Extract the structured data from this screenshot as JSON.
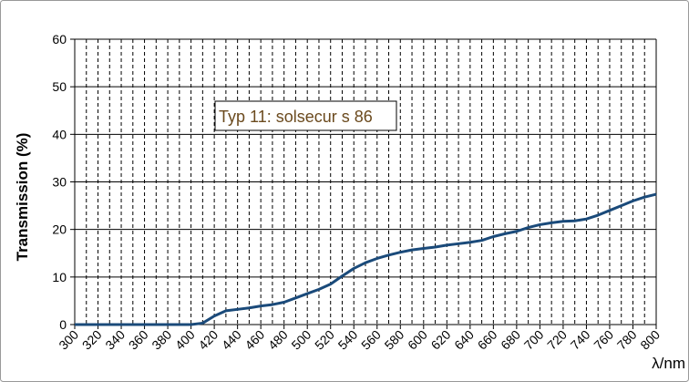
{
  "chart_data": {
    "type": "line",
    "annotation": "Typ 11: solsecur s 86",
    "x_label": "λ/nm",
    "y_label": "Transmission (%)",
    "x": [
      300,
      310,
      320,
      330,
      340,
      350,
      360,
      370,
      380,
      390,
      400,
      410,
      420,
      430,
      440,
      450,
      460,
      470,
      480,
      490,
      500,
      510,
      520,
      530,
      540,
      550,
      560,
      570,
      580,
      590,
      600,
      610,
      620,
      630,
      640,
      650,
      660,
      670,
      680,
      690,
      700,
      710,
      720,
      730,
      740,
      750,
      760,
      770,
      780,
      790,
      800
    ],
    "series": [
      {
        "name": "Typ 11: solsecur s 86",
        "color": "#1a4a7a",
        "values": [
          0,
          0,
          0,
          0,
          0,
          0,
          0,
          0,
          0,
          0,
          0,
          0.3,
          1.8,
          2.9,
          3.2,
          3.5,
          3.9,
          4.2,
          4.7,
          5.6,
          6.5,
          7.4,
          8.5,
          10.2,
          11.8,
          13.0,
          13.9,
          14.6,
          15.2,
          15.7,
          16.0,
          16.3,
          16.7,
          17.0,
          17.3,
          17.7,
          18.5,
          19.1,
          19.6,
          20.4,
          21.0,
          21.4,
          21.7,
          21.8,
          22.2,
          23.0,
          24.0,
          25.0,
          26.0,
          26.8,
          27.4
        ]
      }
    ],
    "xlim": [
      300,
      800
    ],
    "ylim": [
      0,
      60
    ],
    "xticks": [
      300,
      320,
      340,
      360,
      380,
      400,
      420,
      440,
      460,
      480,
      500,
      520,
      540,
      560,
      580,
      600,
      620,
      640,
      660,
      680,
      700,
      720,
      740,
      760,
      780,
      800
    ],
    "yticks": [
      0,
      10,
      20,
      30,
      40,
      50,
      60
    ],
    "grid": true
  }
}
